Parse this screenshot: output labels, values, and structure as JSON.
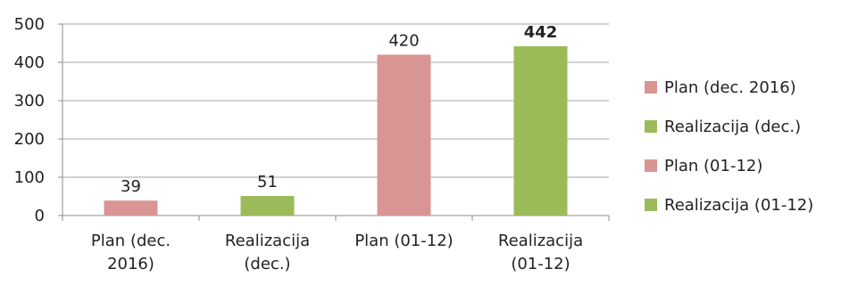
{
  "chart_data": {
    "type": "bar",
    "categories": [
      [
        "Plan (dec.",
        "2016)"
      ],
      [
        "Realizacija",
        "(dec.)"
      ],
      [
        "Plan (01-12)"
      ],
      [
        "Realizacija",
        "(01-12)"
      ]
    ],
    "values": [
      39,
      51,
      420,
      442
    ],
    "data_labels": [
      "39",
      "51",
      "420",
      "442"
    ],
    "bold_labels": [
      false,
      false,
      false,
      true
    ],
    "bar_colors": [
      "#d99594",
      "#9bbb59",
      "#d99594",
      "#9bbb59"
    ],
    "ylim": [
      0,
      500
    ],
    "yticks": [
      0,
      100,
      200,
      300,
      400,
      500
    ],
    "grid": true,
    "legend_position": "right",
    "legend": [
      {
        "label": "Plan (dec. 2016)",
        "color": "#d99594"
      },
      {
        "label": "Realizacija (dec.)",
        "color": "#9bbb59"
      },
      {
        "label": "Plan (01-12)",
        "color": "#d99594"
      },
      {
        "label": "Realizacija (01-12)",
        "color": "#9bbb59"
      }
    ],
    "title": "",
    "xlabel": "",
    "ylabel": ""
  }
}
